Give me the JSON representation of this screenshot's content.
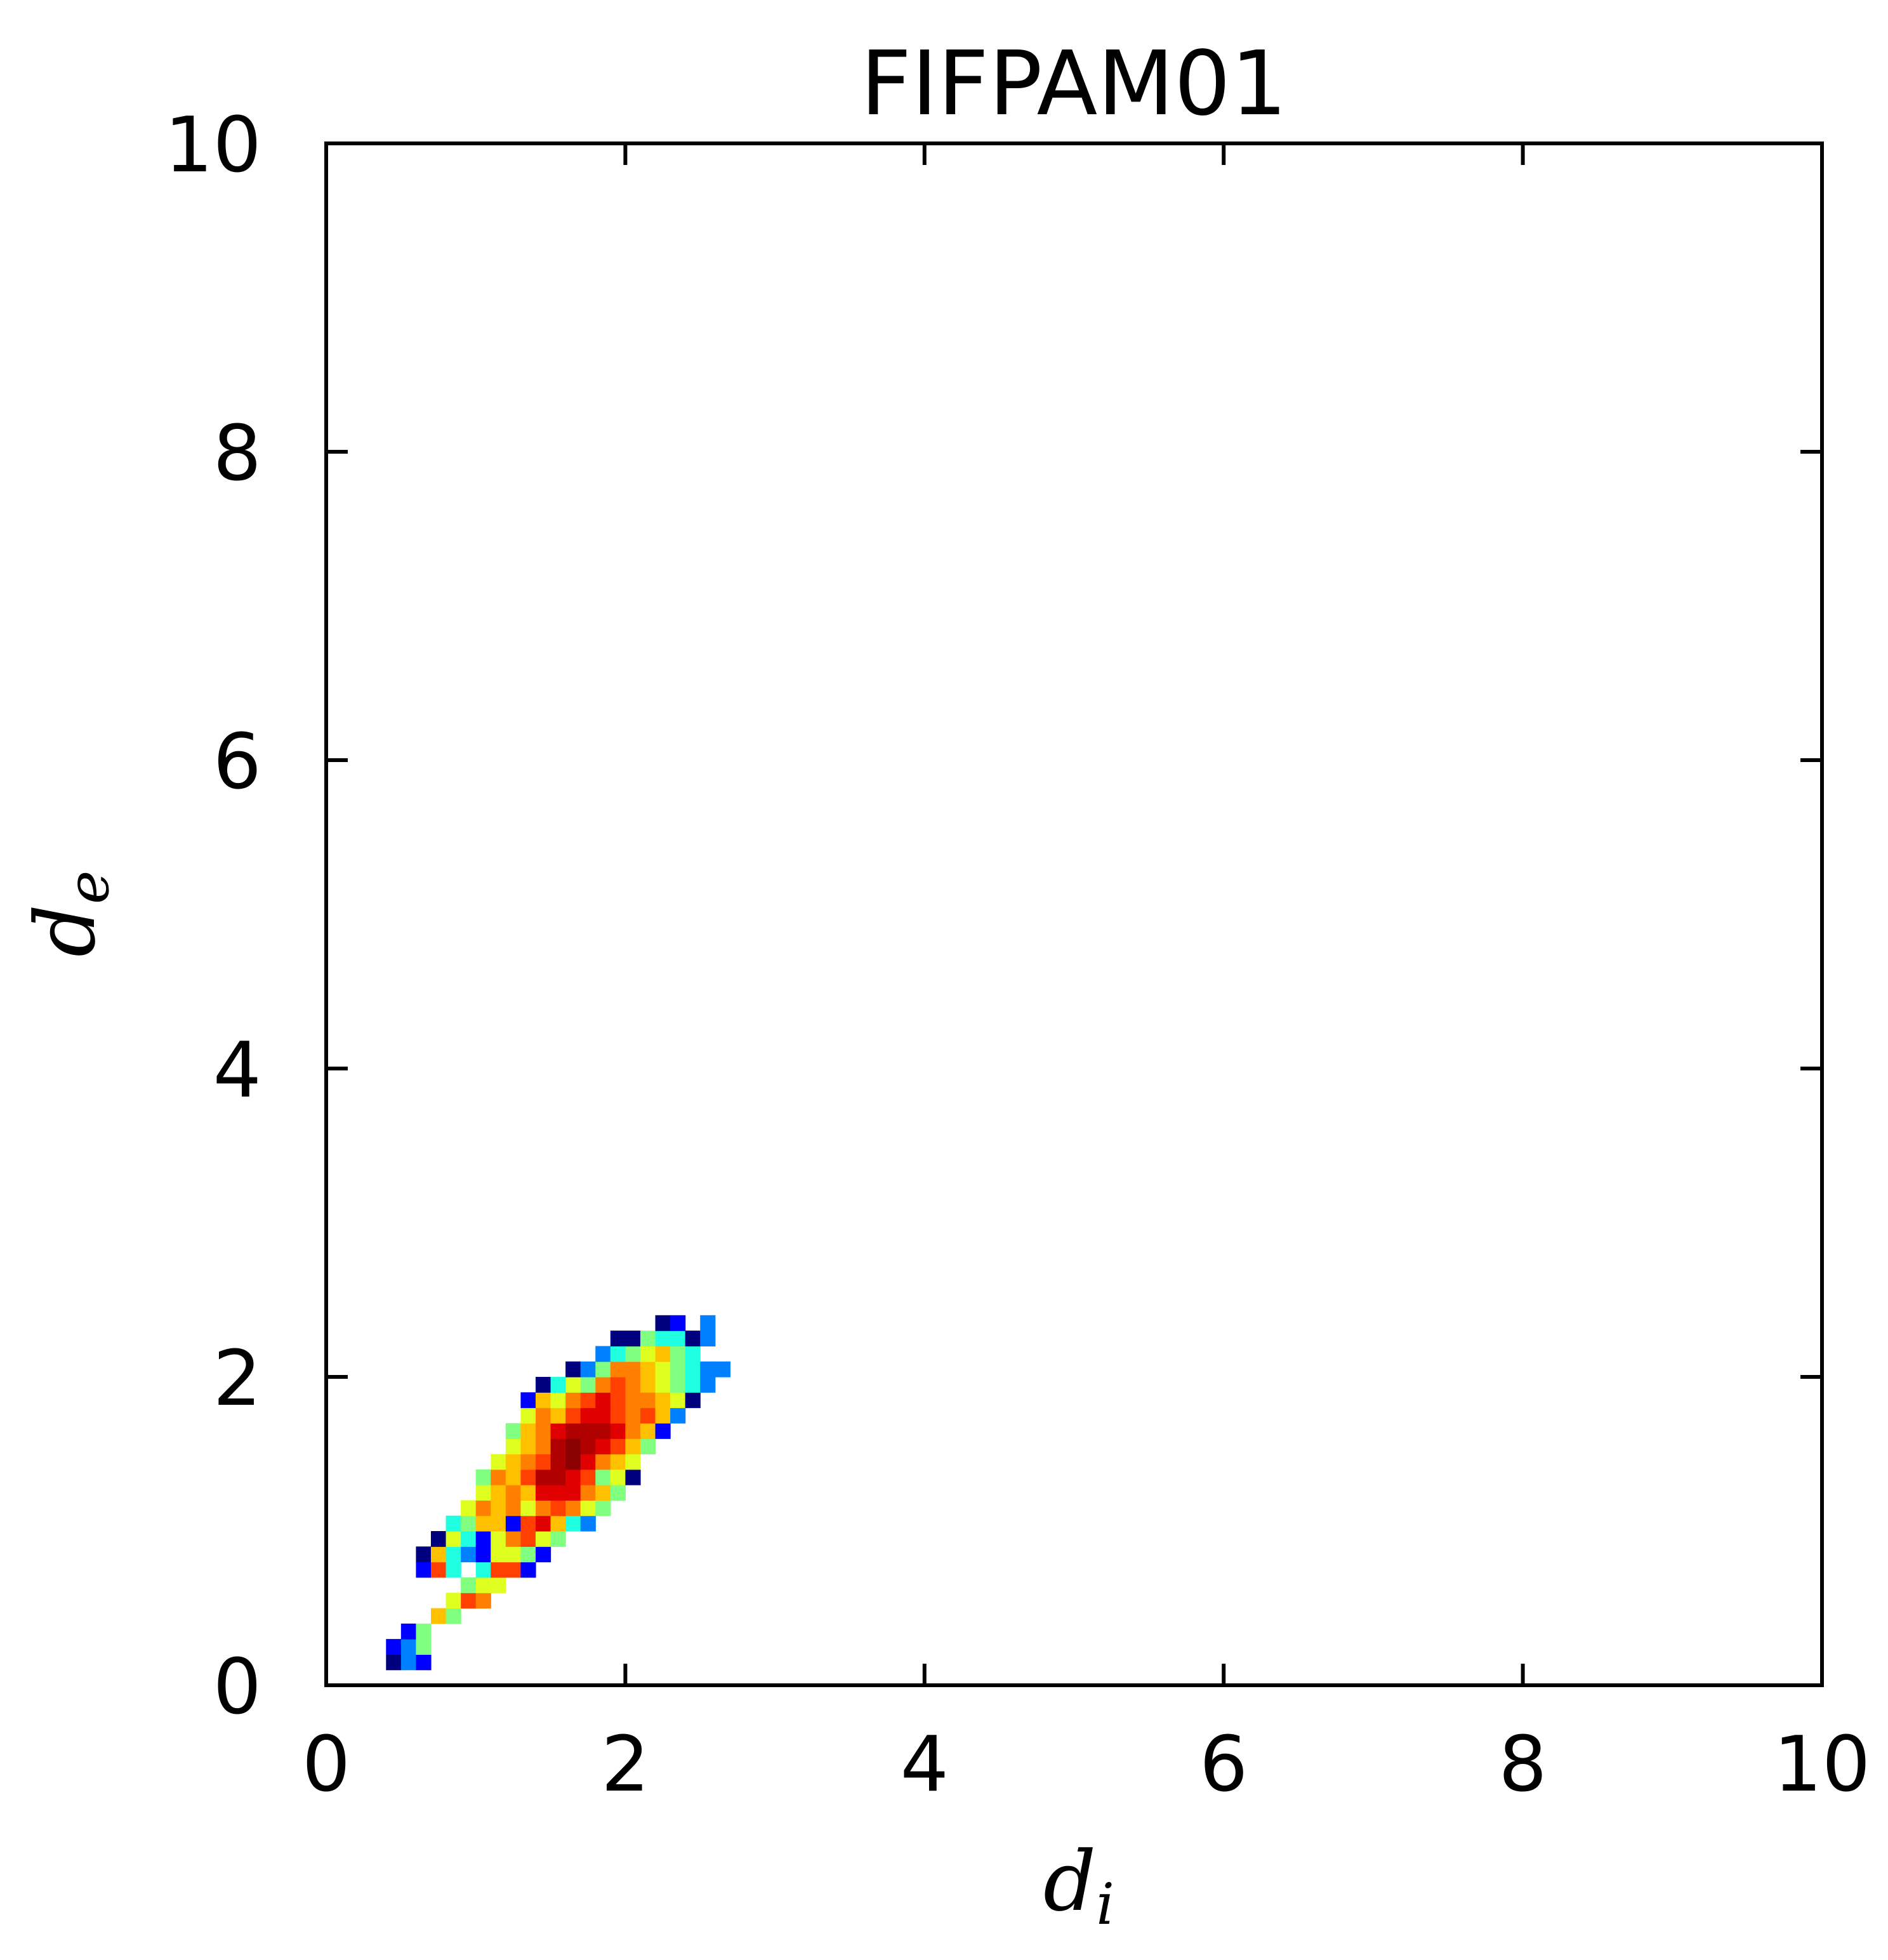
{
  "chart_data": {
    "type": "heatmap",
    "title": "FIFPAM01",
    "xlabel": "d",
    "xlabel_sub": "i",
    "ylabel": "d",
    "ylabel_sub": "e",
    "xlim": [
      0,
      10
    ],
    "ylim": [
      0,
      10
    ],
    "xticks": [
      "0",
      "2",
      "4",
      "6",
      "8",
      "10"
    ],
    "yticks": [
      "0",
      "2",
      "4",
      "6",
      "8",
      "10"
    ],
    "grid": false,
    "colormap": "jet",
    "bin_size": 0.1,
    "palette": {
      "1": "#00007f",
      "2": "#0000ff",
      "3": "#0080ff",
      "4": "#20ffdf",
      "5": "#80ff80",
      "6": "#dfff20",
      "7": "#ffc000",
      "8": "#ff8000",
      "9": "#ff4000",
      "10": "#e00000",
      "11": "#b00000",
      "12": "#8b0000"
    },
    "cells": [
      {
        "x": 0.45,
        "y": 0.15,
        "v": 1
      },
      {
        "x": 0.55,
        "y": 0.15,
        "v": 3
      },
      {
        "x": 0.65,
        "y": 0.15,
        "v": 2
      },
      {
        "x": 0.45,
        "y": 0.25,
        "v": 2
      },
      {
        "x": 0.55,
        "y": 0.25,
        "v": 3
      },
      {
        "x": 0.65,
        "y": 0.25,
        "v": 5
      },
      {
        "x": 0.55,
        "y": 0.35,
        "v": 2
      },
      {
        "x": 0.65,
        "y": 0.35,
        "v": 5
      },
      {
        "x": 0.75,
        "y": 0.45,
        "v": 7
      },
      {
        "x": 0.85,
        "y": 0.45,
        "v": 5
      },
      {
        "x": 0.85,
        "y": 0.55,
        "v": 6
      },
      {
        "x": 0.95,
        "y": 0.55,
        "v": 9
      },
      {
        "x": 1.05,
        "y": 0.55,
        "v": 8
      },
      {
        "x": 0.95,
        "y": 0.65,
        "v": 5
      },
      {
        "x": 1.05,
        "y": 0.65,
        "v": 6
      },
      {
        "x": 1.15,
        "y": 0.65,
        "v": 6
      },
      {
        "x": 0.65,
        "y": 0.75,
        "v": 2
      },
      {
        "x": 0.75,
        "y": 0.75,
        "v": 9
      },
      {
        "x": 0.85,
        "y": 0.75,
        "v": 4
      },
      {
        "x": 1.05,
        "y": 0.75,
        "v": 4
      },
      {
        "x": 1.15,
        "y": 0.75,
        "v": 9
      },
      {
        "x": 1.25,
        "y": 0.75,
        "v": 9
      },
      {
        "x": 1.35,
        "y": 0.75,
        "v": 2
      },
      {
        "x": 0.65,
        "y": 0.85,
        "v": 1
      },
      {
        "x": 0.75,
        "y": 0.85,
        "v": 7
      },
      {
        "x": 0.85,
        "y": 0.85,
        "v": 4
      },
      {
        "x": 0.95,
        "y": 0.85,
        "v": 3
      },
      {
        "x": 1.05,
        "y": 0.85,
        "v": 2
      },
      {
        "x": 1.15,
        "y": 0.85,
        "v": 6
      },
      {
        "x": 1.25,
        "y": 0.85,
        "v": 6
      },
      {
        "x": 1.35,
        "y": 0.85,
        "v": 5
      },
      {
        "x": 1.45,
        "y": 0.85,
        "v": 2
      },
      {
        "x": 0.75,
        "y": 0.95,
        "v": 1
      },
      {
        "x": 0.85,
        "y": 0.95,
        "v": 6
      },
      {
        "x": 0.95,
        "y": 0.95,
        "v": 4
      },
      {
        "x": 1.05,
        "y": 0.95,
        "v": 2
      },
      {
        "x": 1.15,
        "y": 0.95,
        "v": 6
      },
      {
        "x": 1.25,
        "y": 0.95,
        "v": 8
      },
      {
        "x": 1.35,
        "y": 0.95,
        "v": 9
      },
      {
        "x": 1.45,
        "y": 0.95,
        "v": 6
      },
      {
        "x": 1.55,
        "y": 0.95,
        "v": 5
      },
      {
        "x": 0.85,
        "y": 1.05,
        "v": 4
      },
      {
        "x": 0.95,
        "y": 1.05,
        "v": 5
      },
      {
        "x": 1.05,
        "y": 1.05,
        "v": 7
      },
      {
        "x": 1.15,
        "y": 1.05,
        "v": 7
      },
      {
        "x": 1.25,
        "y": 1.05,
        "v": 2
      },
      {
        "x": 1.35,
        "y": 1.05,
        "v": 9
      },
      {
        "x": 1.45,
        "y": 1.05,
        "v": 10
      },
      {
        "x": 1.55,
        "y": 1.05,
        "v": 7
      },
      {
        "x": 1.65,
        "y": 1.05,
        "v": 4
      },
      {
        "x": 1.75,
        "y": 1.05,
        "v": 3
      },
      {
        "x": 0.95,
        "y": 1.15,
        "v": 6
      },
      {
        "x": 1.05,
        "y": 1.15,
        "v": 8
      },
      {
        "x": 1.15,
        "y": 1.15,
        "v": 7
      },
      {
        "x": 1.25,
        "y": 1.15,
        "v": 8
      },
      {
        "x": 1.35,
        "y": 1.15,
        "v": 6
      },
      {
        "x": 1.45,
        "y": 1.15,
        "v": 8
      },
      {
        "x": 1.55,
        "y": 1.15,
        "v": 9
      },
      {
        "x": 1.65,
        "y": 1.15,
        "v": 8
      },
      {
        "x": 1.75,
        "y": 1.15,
        "v": 6
      },
      {
        "x": 1.85,
        "y": 1.15,
        "v": 5
      },
      {
        "x": 1.05,
        "y": 1.25,
        "v": 6
      },
      {
        "x": 1.15,
        "y": 1.25,
        "v": 7
      },
      {
        "x": 1.25,
        "y": 1.25,
        "v": 8
      },
      {
        "x": 1.35,
        "y": 1.25,
        "v": 7
      },
      {
        "x": 1.45,
        "y": 1.25,
        "v": 10
      },
      {
        "x": 1.55,
        "y": 1.25,
        "v": 10
      },
      {
        "x": 1.65,
        "y": 1.25,
        "v": 10
      },
      {
        "x": 1.75,
        "y": 1.25,
        "v": 8
      },
      {
        "x": 1.85,
        "y": 1.25,
        "v": 7
      },
      {
        "x": 1.95,
        "y": 1.25,
        "v": 5
      },
      {
        "x": 1.05,
        "y": 1.35,
        "v": 5
      },
      {
        "x": 1.15,
        "y": 1.35,
        "v": 8
      },
      {
        "x": 1.25,
        "y": 1.35,
        "v": 7
      },
      {
        "x": 1.35,
        "y": 1.35,
        "v": 9
      },
      {
        "x": 1.45,
        "y": 1.35,
        "v": 11
      },
      {
        "x": 1.55,
        "y": 1.35,
        "v": 11
      },
      {
        "x": 1.65,
        "y": 1.35,
        "v": 10
      },
      {
        "x": 1.75,
        "y": 1.35,
        "v": 9
      },
      {
        "x": 1.85,
        "y": 1.35,
        "v": 5
      },
      {
        "x": 1.95,
        "y": 1.35,
        "v": 6
      },
      {
        "x": 2.05,
        "y": 1.35,
        "v": 1
      },
      {
        "x": 1.15,
        "y": 1.45,
        "v": 6
      },
      {
        "x": 1.25,
        "y": 1.45,
        "v": 7
      },
      {
        "x": 1.35,
        "y": 1.45,
        "v": 8
      },
      {
        "x": 1.45,
        "y": 1.45,
        "v": 9
      },
      {
        "x": 1.55,
        "y": 1.45,
        "v": 11
      },
      {
        "x": 1.65,
        "y": 1.45,
        "v": 12
      },
      {
        "x": 1.75,
        "y": 1.45,
        "v": 10
      },
      {
        "x": 1.85,
        "y": 1.45,
        "v": 8
      },
      {
        "x": 1.95,
        "y": 1.45,
        "v": 7
      },
      {
        "x": 2.05,
        "y": 1.45,
        "v": 6
      },
      {
        "x": 1.25,
        "y": 1.55,
        "v": 6
      },
      {
        "x": 1.35,
        "y": 1.55,
        "v": 7
      },
      {
        "x": 1.45,
        "y": 1.55,
        "v": 8
      },
      {
        "x": 1.55,
        "y": 1.55,
        "v": 11
      },
      {
        "x": 1.65,
        "y": 1.55,
        "v": 12
      },
      {
        "x": 1.75,
        "y": 1.55,
        "v": 11
      },
      {
        "x": 1.85,
        "y": 1.55,
        "v": 10
      },
      {
        "x": 1.95,
        "y": 1.55,
        "v": 9
      },
      {
        "x": 2.05,
        "y": 1.55,
        "v": 7
      },
      {
        "x": 2.15,
        "y": 1.55,
        "v": 5
      },
      {
        "x": 1.25,
        "y": 1.65,
        "v": 5
      },
      {
        "x": 1.35,
        "y": 1.65,
        "v": 7
      },
      {
        "x": 1.45,
        "y": 1.65,
        "v": 8
      },
      {
        "x": 1.55,
        "y": 1.65,
        "v": 10
      },
      {
        "x": 1.65,
        "y": 1.65,
        "v": 11
      },
      {
        "x": 1.75,
        "y": 1.65,
        "v": 11
      },
      {
        "x": 1.85,
        "y": 1.65,
        "v": 11
      },
      {
        "x": 1.95,
        "y": 1.65,
        "v": 10
      },
      {
        "x": 2.05,
        "y": 1.65,
        "v": 8
      },
      {
        "x": 2.15,
        "y": 1.65,
        "v": 7
      },
      {
        "x": 2.25,
        "y": 1.65,
        "v": 2
      },
      {
        "x": 1.35,
        "y": 1.75,
        "v": 6
      },
      {
        "x": 1.45,
        "y": 1.75,
        "v": 8
      },
      {
        "x": 1.55,
        "y": 1.75,
        "v": 7
      },
      {
        "x": 1.65,
        "y": 1.75,
        "v": 9
      },
      {
        "x": 1.75,
        "y": 1.75,
        "v": 10
      },
      {
        "x": 1.85,
        "y": 1.75,
        "v": 10
      },
      {
        "x": 1.95,
        "y": 1.75,
        "v": 9
      },
      {
        "x": 2.05,
        "y": 1.75,
        "v": 8
      },
      {
        "x": 2.15,
        "y": 1.75,
        "v": 9
      },
      {
        "x": 2.25,
        "y": 1.75,
        "v": 7
      },
      {
        "x": 2.35,
        "y": 1.75,
        "v": 3
      },
      {
        "x": 1.35,
        "y": 1.85,
        "v": 2
      },
      {
        "x": 1.45,
        "y": 1.85,
        "v": 7
      },
      {
        "x": 1.55,
        "y": 1.85,
        "v": 6
      },
      {
        "x": 1.65,
        "y": 1.85,
        "v": 8
      },
      {
        "x": 1.75,
        "y": 1.85,
        "v": 9
      },
      {
        "x": 1.85,
        "y": 1.85,
        "v": 10
      },
      {
        "x": 1.95,
        "y": 1.85,
        "v": 9
      },
      {
        "x": 2.05,
        "y": 1.85,
        "v": 8
      },
      {
        "x": 2.15,
        "y": 1.85,
        "v": 8
      },
      {
        "x": 2.25,
        "y": 1.85,
        "v": 7
      },
      {
        "x": 2.35,
        "y": 1.85,
        "v": 6
      },
      {
        "x": 2.45,
        "y": 1.85,
        "v": 1
      },
      {
        "x": 1.45,
        "y": 1.95,
        "v": 1
      },
      {
        "x": 1.55,
        "y": 1.95,
        "v": 4
      },
      {
        "x": 1.65,
        "y": 1.95,
        "v": 6
      },
      {
        "x": 1.75,
        "y": 1.95,
        "v": 5
      },
      {
        "x": 1.85,
        "y": 1.95,
        "v": 8
      },
      {
        "x": 1.95,
        "y": 1.95,
        "v": 9
      },
      {
        "x": 2.05,
        "y": 1.95,
        "v": 8
      },
      {
        "x": 2.15,
        "y": 1.95,
        "v": 7
      },
      {
        "x": 2.25,
        "y": 1.95,
        "v": 6
      },
      {
        "x": 2.35,
        "y": 1.95,
        "v": 5
      },
      {
        "x": 2.45,
        "y": 1.95,
        "v": 4
      },
      {
        "x": 2.55,
        "y": 1.95,
        "v": 3
      },
      {
        "x": 1.65,
        "y": 2.05,
        "v": 1
      },
      {
        "x": 1.75,
        "y": 2.05,
        "v": 3
      },
      {
        "x": 1.85,
        "y": 2.05,
        "v": 5
      },
      {
        "x": 1.95,
        "y": 2.05,
        "v": 8
      },
      {
        "x": 2.05,
        "y": 2.05,
        "v": 8
      },
      {
        "x": 2.15,
        "y": 2.05,
        "v": 7
      },
      {
        "x": 2.25,
        "y": 2.05,
        "v": 6
      },
      {
        "x": 2.35,
        "y": 2.05,
        "v": 5
      },
      {
        "x": 2.45,
        "y": 2.05,
        "v": 4
      },
      {
        "x": 2.55,
        "y": 2.05,
        "v": 3
      },
      {
        "x": 2.65,
        "y": 2.05,
        "v": 3
      },
      {
        "x": 1.85,
        "y": 2.15,
        "v": 3
      },
      {
        "x": 1.95,
        "y": 2.15,
        "v": 4
      },
      {
        "x": 2.05,
        "y": 2.15,
        "v": 5
      },
      {
        "x": 2.15,
        "y": 2.15,
        "v": 6
      },
      {
        "x": 2.25,
        "y": 2.15,
        "v": 7
      },
      {
        "x": 2.35,
        "y": 2.15,
        "v": 5
      },
      {
        "x": 2.45,
        "y": 2.15,
        "v": 4
      },
      {
        "x": 1.95,
        "y": 2.25,
        "v": 1
      },
      {
        "x": 2.05,
        "y": 2.25,
        "v": 1
      },
      {
        "x": 2.15,
        "y": 2.25,
        "v": 5
      },
      {
        "x": 2.25,
        "y": 2.25,
        "v": 4
      },
      {
        "x": 2.35,
        "y": 2.25,
        "v": 4
      },
      {
        "x": 2.45,
        "y": 2.25,
        "v": 1
      },
      {
        "x": 2.55,
        "y": 2.25,
        "v": 3
      },
      {
        "x": 2.25,
        "y": 2.35,
        "v": 1
      },
      {
        "x": 2.35,
        "y": 2.35,
        "v": 2
      },
      {
        "x": 2.55,
        "y": 2.35,
        "v": 3
      }
    ]
  }
}
